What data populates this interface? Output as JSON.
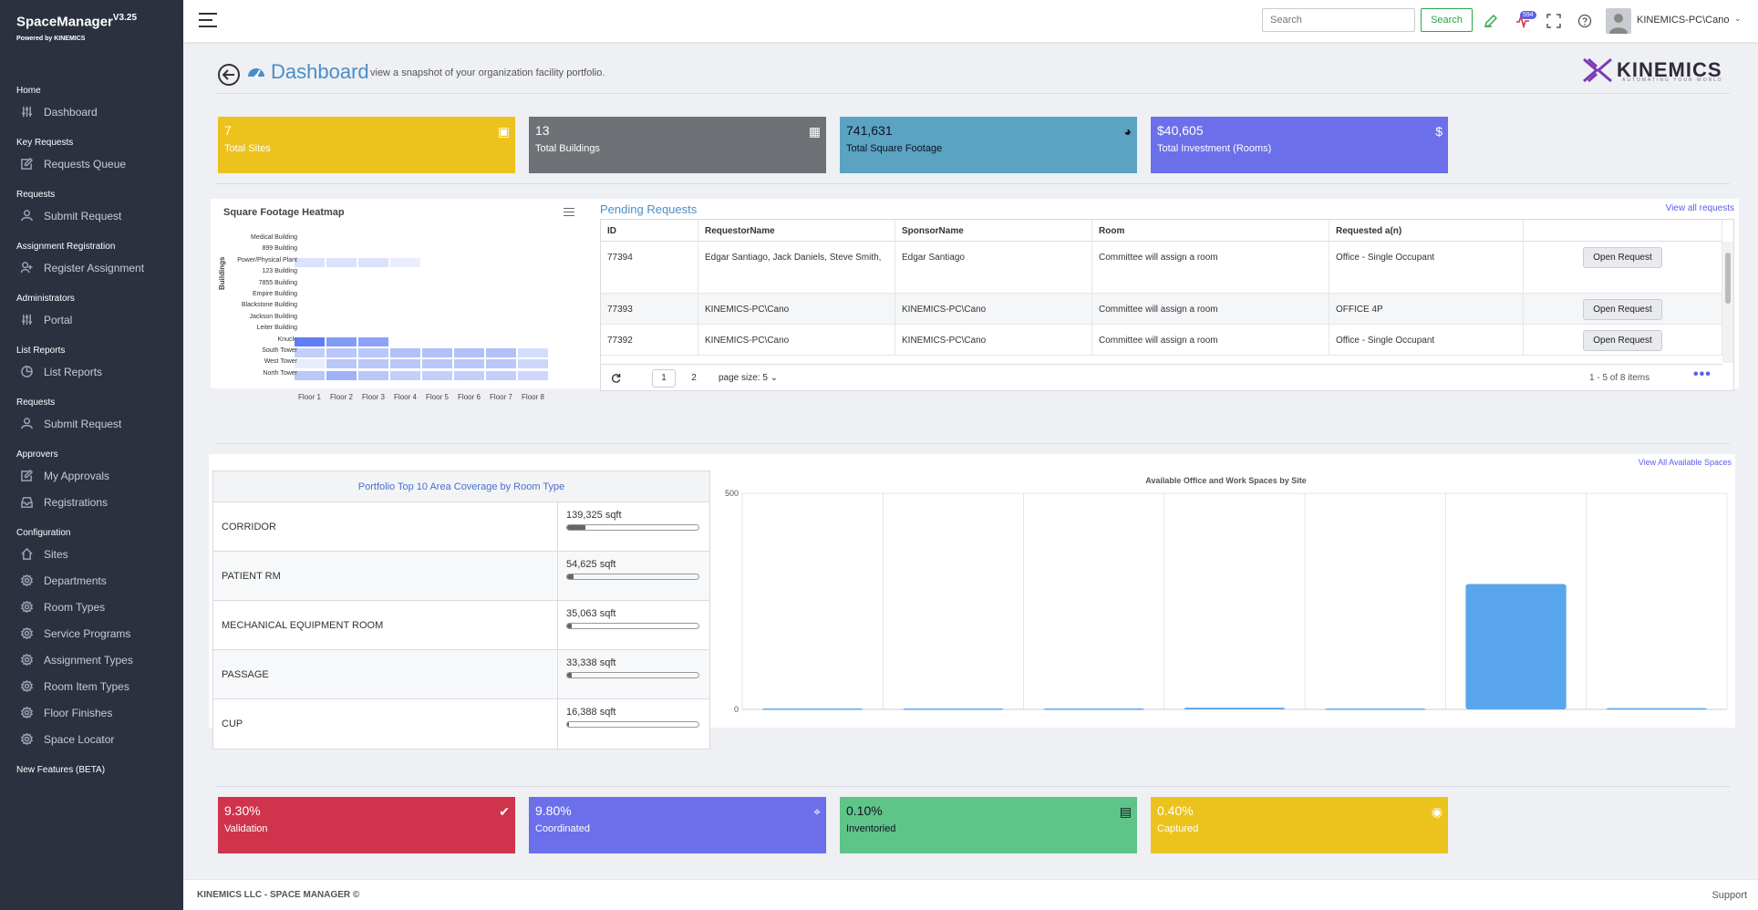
{
  "brand": {
    "name": "SpaceManager",
    "version": "V3.25",
    "powered_by": "Powered by KINEMICS"
  },
  "sidebar": {
    "sections": [
      {
        "title": "Home",
        "items": [
          {
            "label": "Dashboard",
            "icon": "sliders-icon"
          }
        ]
      },
      {
        "title": "Key Requests",
        "items": [
          {
            "label": "Requests Queue",
            "icon": "edit-icon"
          }
        ]
      },
      {
        "title": "Requests",
        "items": [
          {
            "label": "Submit Request",
            "icon": "user-icon"
          }
        ]
      },
      {
        "title": "Assignment Registration",
        "items": [
          {
            "label": "Register Assignment",
            "icon": "user-plus-icon"
          }
        ]
      },
      {
        "title": "Administrators",
        "items": [
          {
            "label": "Portal",
            "icon": "sliders-icon"
          }
        ]
      },
      {
        "title": "List Reports",
        "items": [
          {
            "label": "List Reports",
            "icon": "pie-icon"
          }
        ]
      },
      {
        "title": "Requests",
        "items": [
          {
            "label": "Submit Request",
            "icon": "user-icon"
          }
        ]
      },
      {
        "title": "Approvers",
        "items": [
          {
            "label": "My Approvals",
            "icon": "edit-icon"
          },
          {
            "label": "Registrations",
            "icon": "inbox-icon"
          }
        ]
      },
      {
        "title": "Configuration",
        "items": [
          {
            "label": "Sites",
            "icon": "home-icon"
          },
          {
            "label": "Departments",
            "icon": "gear-icon"
          },
          {
            "label": "Room Types",
            "icon": "gear-icon"
          },
          {
            "label": "Service Programs",
            "icon": "gear-icon"
          },
          {
            "label": "Assignment Types",
            "icon": "gear-icon"
          },
          {
            "label": "Room Item Types",
            "icon": "gear-icon"
          },
          {
            "label": "Floor Finishes",
            "icon": "gear-icon"
          },
          {
            "label": "Space Locator",
            "icon": "gear-icon"
          }
        ]
      },
      {
        "title": "New Features (BETA)",
        "items": []
      }
    ]
  },
  "topbar": {
    "search_placeholder": "Search",
    "search_button": "Search",
    "notification_count": "594",
    "user": "KINEMICS-PC\\Cano"
  },
  "header": {
    "title": "Dashboard",
    "subtitle": "view a snapshot of your organization facility portfolio.",
    "logo": "KINEMICS",
    "logo_tagline": "AUTOMATING YOUR WORLD"
  },
  "stats_top": [
    {
      "value": "7",
      "label": "Total Sites",
      "color": "#ecc31d",
      "icon": "building-icon"
    },
    {
      "value": "13",
      "label": "Total Buildings",
      "color": "#6e7176",
      "icon": "office-icon"
    },
    {
      "value": "741,631",
      "label": "Total Square Footage",
      "color": "#5aa3c2",
      "icon": "gauge-icon"
    },
    {
      "value": "$40,605",
      "label": "Total Investment (Rooms)",
      "color": "#6b6fea",
      "icon": "dollar-icon"
    }
  ],
  "heatmap": {
    "title": "Square Footage Heatmap",
    "y_axis_label": "Buildings",
    "buildings": [
      "Medical Building",
      "899 Building",
      "Power/Physical Plant",
      "123 Building",
      "7855 Building",
      "Empire Building",
      "Blackstone Building",
      "Jackson Building",
      "Leiter Building",
      "Knucle",
      "South Tower",
      "West Tower",
      "North Tower"
    ],
    "floors": [
      "Floor 1",
      "Floor 2",
      "Floor 3",
      "Floor 4",
      "Floor 5",
      "Floor 6",
      "Floor 7",
      "Floor 8"
    ],
    "intensity": [
      [
        0,
        0,
        0,
        0,
        0,
        0,
        0,
        0
      ],
      [
        0,
        0,
        0,
        0,
        0,
        0,
        0,
        0
      ],
      [
        0.12,
        0.12,
        0.12,
        0.04,
        0,
        0,
        0,
        0
      ],
      [
        0,
        0,
        0,
        0,
        0,
        0,
        0,
        0
      ],
      [
        0,
        0,
        0,
        0,
        0,
        0,
        0,
        0
      ],
      [
        0,
        0,
        0,
        0,
        0,
        0,
        0,
        0
      ],
      [
        0,
        0,
        0,
        0,
        0,
        0,
        0,
        0
      ],
      [
        0,
        0,
        0,
        0,
        0,
        0,
        0,
        0
      ],
      [
        0,
        0,
        0,
        0,
        0,
        0,
        0,
        0
      ],
      [
        0.8,
        0.6,
        0.55,
        0,
        0,
        0,
        0,
        0
      ],
      [
        0.25,
        0.3,
        0.3,
        0.35,
        0.35,
        0.35,
        0.35,
        0.15
      ],
      [
        0.05,
        0.3,
        0.3,
        0.3,
        0.3,
        0.3,
        0.3,
        0.2
      ],
      [
        0.3,
        0.45,
        0.3,
        0.25,
        0.25,
        0.25,
        0.25,
        0.2
      ]
    ]
  },
  "pending": {
    "title": "Pending Requests",
    "view_all": "View all requests",
    "columns": [
      "ID",
      "RequestorName",
      "SponsorName",
      "Room",
      "Requested a(n)",
      ""
    ],
    "rows": [
      {
        "id": "77394",
        "requestor": "Edgar Santiago, Jack Daniels, Steve Smith,",
        "sponsor": "Edgar Santiago",
        "room": "Committee will assign a room",
        "requested": "Office - Single Occupant",
        "action": "Open Request"
      },
      {
        "id": "77393",
        "requestor": "KINEMICS-PC\\Cano",
        "sponsor": "KINEMICS-PC\\Cano",
        "room": "Committee will assign a room",
        "requested": "OFFICE 4P",
        "action": "Open Request"
      },
      {
        "id": "77392",
        "requestor": "KINEMICS-PC\\Cano",
        "sponsor": "KINEMICS-PC\\Cano",
        "room": "Committee will assign a room",
        "requested": "Office - Single Occupant",
        "action": "Open Request"
      }
    ],
    "pager": {
      "pages": [
        "1",
        "2"
      ],
      "current": "1",
      "page_size": "page size: 5",
      "summary": "1 - 5 of 8 items"
    }
  },
  "coverage": {
    "title": "Portfolio Top 10 Area Coverage by Room Type",
    "rows": [
      {
        "name": "CORRIDOR",
        "value": "139,325 sqft",
        "fraction": 0.14
      },
      {
        "name": "PATIENT RM",
        "value": "54,625 sqft",
        "fraction": 0.05
      },
      {
        "name": "MECHANICAL EQUIPMENT ROOM",
        "value": "35,063 sqft",
        "fraction": 0.035
      },
      {
        "name": "PASSAGE",
        "value": "33,338 sqft",
        "fraction": 0.033
      },
      {
        "name": "CUP",
        "value": "16,388 sqft",
        "fraction": 0.017
      }
    ]
  },
  "spaces_chart": {
    "view_all": "View All Available Spaces"
  },
  "chart_data": {
    "type": "bar",
    "title": "Available Office and Work Spaces by Site",
    "ylim": [
      0,
      500
    ],
    "y_ticks": [
      "500",
      "0"
    ],
    "grid": true,
    "values": [
      2,
      2,
      2,
      4,
      2,
      290,
      3
    ]
  },
  "stats_bottom": [
    {
      "value": "9.30%",
      "label": "Validation",
      "color": "#d0344c",
      "icon": "check-icon"
    },
    {
      "value": "9.80%",
      "label": "Coordinated",
      "color": "#6b6fea",
      "icon": "crosshair-icon"
    },
    {
      "value": "0.10%",
      "label": "Inventoried",
      "color": "#5ec488",
      "icon": "server-icon"
    },
    {
      "value": "0.40%",
      "label": "Captured",
      "color": "#ecc31d",
      "icon": "camera-icon"
    }
  ],
  "footer": {
    "left": "KINEMICS LLC - SPACE MANAGER ©",
    "right": "Support"
  }
}
